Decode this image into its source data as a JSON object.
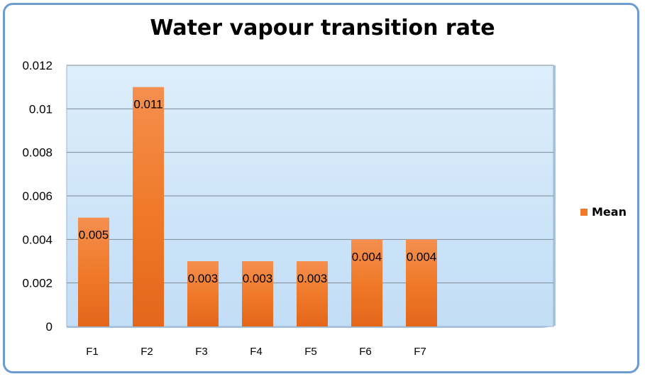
{
  "chart_data": {
    "type": "bar",
    "title": "Water vapour transition rate",
    "categories": [
      "F1",
      "F2",
      "F3",
      "F4",
      "F5",
      "F6",
      "F7"
    ],
    "series": [
      {
        "name": "Mean",
        "values": [
          0.005,
          0.011,
          0.003,
          0.003,
          0.003,
          0.004,
          0.004
        ],
        "data_labels": [
          "0.005",
          "0.011",
          "0.003",
          "0.003",
          "0.003",
          "0.004",
          "0.004"
        ],
        "color": "#f07a2a"
      }
    ],
    "yticks": [
      "0",
      "0.002",
      "0.004",
      "0.006",
      "0.008",
      "0.01",
      "0.012"
    ],
    "ylim": [
      0,
      0.012
    ],
    "xlabel": "",
    "ylabel": "",
    "grid": true,
    "legend": "right",
    "plot_background": "#c9e2f8"
  }
}
